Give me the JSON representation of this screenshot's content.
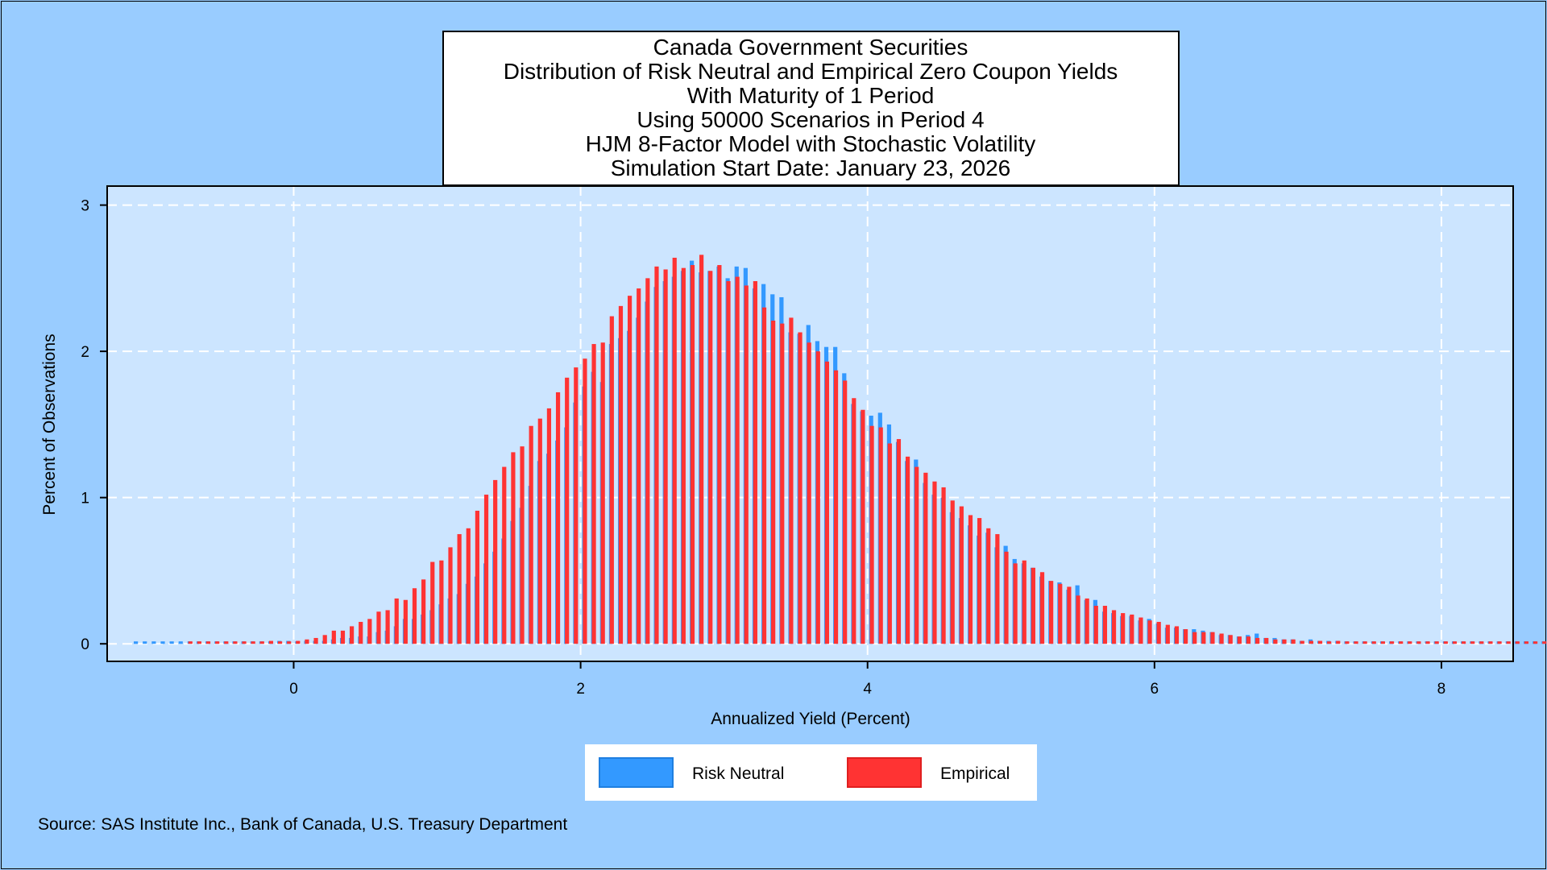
{
  "chart_data": {
    "type": "bar",
    "title": [
      "Canada Government Securities",
      "Distribution of Risk Neutral and Empirical Zero Coupon Yields",
      "With Maturity of 1 Period",
      "Using 50000 Scenarios in Period 4",
      "HJM 8-Factor Model with Stochastic Volatility",
      "Simulation Start Date:  January 23, 2026"
    ],
    "xlabel": "Annualized Yield (Percent)",
    "ylabel": "Percent of Observations",
    "xlim": [
      -1.3,
      8.5
    ],
    "ylim": [
      -0.12,
      3.13
    ],
    "xticks": [
      0,
      2,
      4,
      6,
      8
    ],
    "yticks": [
      0,
      1,
      2,
      3
    ],
    "grid": true,
    "legend_position": "bottom-center",
    "source": "Source: SAS Institute Inc., Bank of Canada, U.S. Treasury Department",
    "series": [
      {
        "name": "Risk Neutral",
        "color": "#3399ff",
        "x_start": -1.1,
        "bin_width": 0.0625,
        "values": [
          0.0,
          0.0,
          0.0,
          0.0,
          0.0,
          0.0,
          0.0,
          0.0,
          0.01,
          0.01,
          0.0,
          0.0,
          0.01,
          0.01,
          0.01,
          0.01,
          0.02,
          0.02,
          0.01,
          0.02,
          0.02,
          0.02,
          0.03,
          0.04,
          0.04,
          0.05,
          0.05,
          0.08,
          0.09,
          0.12,
          0.17,
          0.17,
          0.2,
          0.23,
          0.27,
          0.31,
          0.34,
          0.41,
          0.46,
          0.55,
          0.63,
          0.72,
          0.84,
          0.93,
          1.08,
          1.25,
          1.3,
          1.39,
          1.48,
          1.65,
          1.76,
          1.86,
          1.79,
          2.05,
          2.09,
          2.14,
          2.23,
          2.34,
          2.44,
          2.48,
          2.51,
          2.55,
          2.62,
          2.54,
          2.55,
          2.58,
          2.5,
          2.58,
          2.57,
          2.43,
          2.46,
          2.39,
          2.37,
          2.13,
          2.12,
          2.18,
          2.07,
          2.03,
          2.03,
          1.85,
          1.64,
          1.59,
          1.56,
          1.58,
          1.5,
          1.38,
          1.25,
          1.26,
          1.1,
          1.02,
          1.0,
          0.9,
          0.86,
          0.81,
          0.74,
          0.76,
          0.66,
          0.67,
          0.58,
          0.55,
          0.52,
          0.46,
          0.43,
          0.42,
          0.37,
          0.4,
          0.3,
          0.3,
          0.22,
          0.21,
          0.19,
          0.19,
          0.16,
          0.17,
          0.14,
          0.11,
          0.11,
          0.1,
          0.1,
          0.09,
          0.08,
          0.06,
          0.06,
          0.05,
          0.06,
          0.07,
          0.04,
          0.04,
          0.03,
          0.03,
          0.02,
          0.03,
          0.02,
          0.02,
          0.02,
          0.01,
          0.01,
          0.01,
          0.01,
          0.01,
          0.01,
          0.01,
          0.01,
          0.01,
          0.01,
          0.01,
          0.01,
          0.0,
          0.0,
          0.0,
          0.01,
          0.01,
          0.0,
          0.0,
          0.0,
          0.0,
          0.0,
          0.0,
          0.0,
          0.01,
          0.0,
          0.0,
          0.0,
          0.0,
          0.0,
          0.0,
          0.0,
          0.0,
          0.0,
          0.0
        ]
      },
      {
        "name": "Empirical",
        "color": "#ff3333",
        "x_start": -0.72,
        "bin_width": 0.0625,
        "values": [
          0.01,
          0.01,
          0.0,
          0.0,
          0.01,
          0.0,
          0.0,
          0.01,
          0.01,
          0.02,
          0.01,
          0.01,
          0.02,
          0.03,
          0.04,
          0.06,
          0.09,
          0.09,
          0.12,
          0.15,
          0.17,
          0.22,
          0.23,
          0.31,
          0.3,
          0.38,
          0.44,
          0.56,
          0.57,
          0.66,
          0.75,
          0.79,
          0.91,
          1.02,
          1.12,
          1.21,
          1.31,
          1.35,
          1.49,
          1.54,
          1.61,
          1.72,
          1.82,
          1.89,
          1.95,
          2.05,
          2.06,
          2.24,
          2.31,
          2.38,
          2.43,
          2.5,
          2.58,
          2.56,
          2.64,
          2.57,
          2.59,
          2.66,
          2.55,
          2.59,
          2.48,
          2.51,
          2.45,
          2.48,
          2.3,
          2.21,
          2.19,
          2.23,
          2.13,
          2.06,
          2.0,
          1.93,
          1.87,
          1.8,
          1.68,
          1.6,
          1.49,
          1.48,
          1.37,
          1.4,
          1.28,
          1.21,
          1.17,
          1.11,
          1.07,
          0.98,
          0.94,
          0.88,
          0.86,
          0.79,
          0.75,
          0.63,
          0.55,
          0.57,
          0.52,
          0.49,
          0.43,
          0.41,
          0.39,
          0.33,
          0.31,
          0.26,
          0.26,
          0.23,
          0.21,
          0.2,
          0.18,
          0.16,
          0.15,
          0.13,
          0.12,
          0.1,
          0.08,
          0.08,
          0.08,
          0.07,
          0.06,
          0.05,
          0.05,
          0.04,
          0.04,
          0.03,
          0.03,
          0.03,
          0.02,
          0.02,
          0.02,
          0.01,
          0.02,
          0.01,
          0.01,
          0.01,
          0.01,
          0.01,
          0.0,
          0.01,
          0.0,
          0.0,
          0.0,
          0.01,
          0.0,
          0.0,
          0.01,
          0.0,
          0.0,
          0.0,
          0.0,
          0.0,
          0.0,
          0.01,
          0.0,
          0.0,
          0.0,
          0.0,
          0.0,
          0.0,
          0.0,
          0.0,
          0.0,
          0.0,
          0.0,
          0.0,
          0.0,
          0.0,
          0.0,
          0.0,
          0.0,
          0.0
        ]
      }
    ]
  }
}
